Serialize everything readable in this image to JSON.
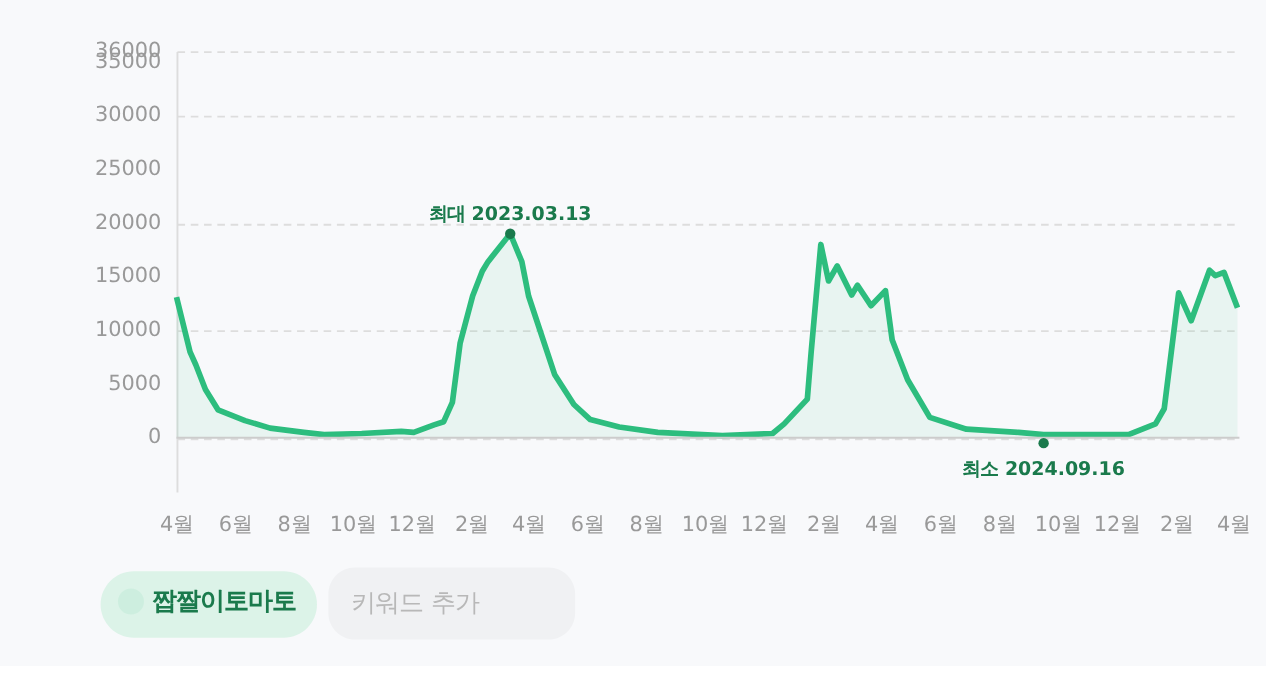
{
  "chart_data": {
    "type": "area",
    "x": [
      "2022-04-01",
      "2022-04-15",
      "2022-04-21",
      "2022-05-01",
      "2022-05-14",
      "2022-06-11",
      "2022-07-07",
      "2022-08-11",
      "2022-09-01",
      "2022-10-10",
      "2022-11-20",
      "2022-12-03",
      "2022-12-24",
      "2023-01-03",
      "2023-01-12",
      "2023-01-20",
      "2023-02-02",
      "2023-02-12",
      "2023-02-18",
      "2023-03-13",
      "2023-03-25",
      "2023-04-01",
      "2023-04-28",
      "2023-05-18",
      "2023-06-04",
      "2023-07-04",
      "2023-08-13",
      "2023-10-19",
      "2023-12-10",
      "2023-12-22",
      "2024-01-15",
      "2024-01-19",
      "2024-01-29",
      "2024-02-06",
      "2024-02-15",
      "2024-03-01",
      "2024-03-07",
      "2024-03-21",
      "2024-04-05",
      "2024-04-12",
      "2024-04-28",
      "2024-05-21",
      "2024-06-28",
      "2024-08-21",
      "2024-09-16",
      "2024-10-28",
      "2024-12-13",
      "2025-01-10",
      "2025-01-19",
      "2025-02-03",
      "2025-02-16",
      "2025-03-07",
      "2025-03-13",
      "2025-03-22",
      "2025-04-05"
    ],
    "series": [
      {
        "name": "짭짤이토마토",
        "color": "#2dbd7e",
        "values": [
          13100,
          8000,
          6800,
          4500,
          2600,
          1600,
          900,
          500,
          300,
          400,
          600,
          500,
          1200,
          1500,
          3300,
          8800,
          13200,
          15500,
          16400,
          19000,
          16400,
          13200,
          5900,
          3100,
          1700,
          1000,
          500,
          200,
          400,
          1300,
          3600,
          8000,
          18000,
          14600,
          16000,
          13300,
          14200,
          12300,
          13700,
          9100,
          5400,
          1900,
          800,
          500,
          300,
          300,
          300,
          1300,
          2700,
          13500,
          10900,
          15600,
          15100,
          15400,
          12100
        ]
      }
    ],
    "ylim": [
      -5000,
      36000
    ],
    "yticks": [
      0,
      5000,
      10000,
      15000,
      20000,
      25000,
      30000,
      35000,
      36000
    ],
    "xlim": [
      "2022-04-01",
      "2025-04-07"
    ],
    "xticks": [
      {
        "value": "2022-04-01",
        "label": "4월"
      },
      {
        "value": "2022-06-01",
        "label": "6월"
      },
      {
        "value": "2022-08-01",
        "label": "8월"
      },
      {
        "value": "2022-10-01",
        "label": "10월"
      },
      {
        "value": "2022-12-01",
        "label": "12월"
      },
      {
        "value": "2023-02-01",
        "label": "2월"
      },
      {
        "value": "2023-04-01",
        "label": "4월"
      },
      {
        "value": "2023-06-01",
        "label": "6월"
      },
      {
        "value": "2023-08-01",
        "label": "8월"
      },
      {
        "value": "2023-10-01",
        "label": "10월"
      },
      {
        "value": "2023-12-01",
        "label": "12월"
      },
      {
        "value": "2024-02-01",
        "label": "2월"
      },
      {
        "value": "2024-04-01",
        "label": "4월"
      },
      {
        "value": "2024-06-01",
        "label": "6월"
      },
      {
        "value": "2024-08-01",
        "label": "8월"
      },
      {
        "value": "2024-10-01",
        "label": "10월"
      },
      {
        "value": "2024-12-01",
        "label": "12월"
      },
      {
        "value": "2025-02-01",
        "label": "2월"
      },
      {
        "value": "2025-04-01",
        "label": "4월"
      }
    ],
    "grid": "y",
    "legend": "bottom left",
    "ref_lines": [
      {
        "axis": "y",
        "value": 0,
        "color": "#cccccc"
      }
    ],
    "annotations": [
      {
        "text": "최대 2023.03.13",
        "x": "2023-03-13",
        "y": 19000
      },
      {
        "text": "최소 2024.09.16",
        "x": "2024-09-16",
        "y": -500
      },
      "키워드 추가"
    ]
  }
}
